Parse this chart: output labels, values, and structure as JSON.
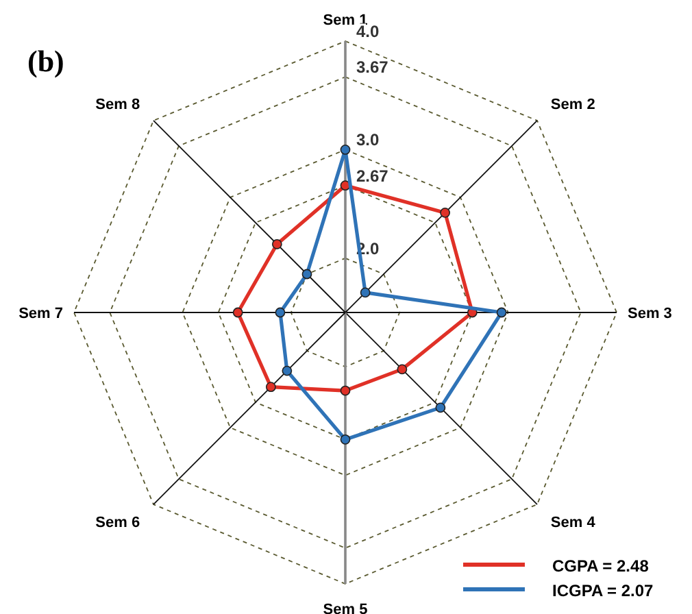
{
  "chart_data": {
    "type": "radar",
    "categories": [
      "Sem 1",
      "Sem 2",
      "Sem 3",
      "Sem 4",
      "Sem 5",
      "Sem 6",
      "Sem 7",
      "Sem 8"
    ],
    "series": [
      {
        "name": "CGPA = 2.48",
        "color": "#e03127",
        "values": [
          2.67,
          2.8,
          2.67,
          2.24,
          2.22,
          2.47,
          2.49,
          2.39
        ]
      },
      {
        "name": "ICGPA = 2.07",
        "color": "#2f73b7",
        "values": [
          3.0,
          1.76,
          2.94,
          2.74,
          2.67,
          2.26,
          2.1,
          2.0
        ]
      }
    ],
    "ylim": [
      1.5,
      4.0
    ],
    "yticks": [
      {
        "value": 2,
        "label": "2.0"
      },
      2.67,
      {
        "value": 3,
        "label": "3.0"
      },
      3.67,
      {
        "value": 4,
        "label": "4.0"
      }
    ],
    "annotations": [
      "(b)"
    ],
    "legend": "bottom right",
    "marker": "circle",
    "line_style": "solid",
    "grid": true
  }
}
